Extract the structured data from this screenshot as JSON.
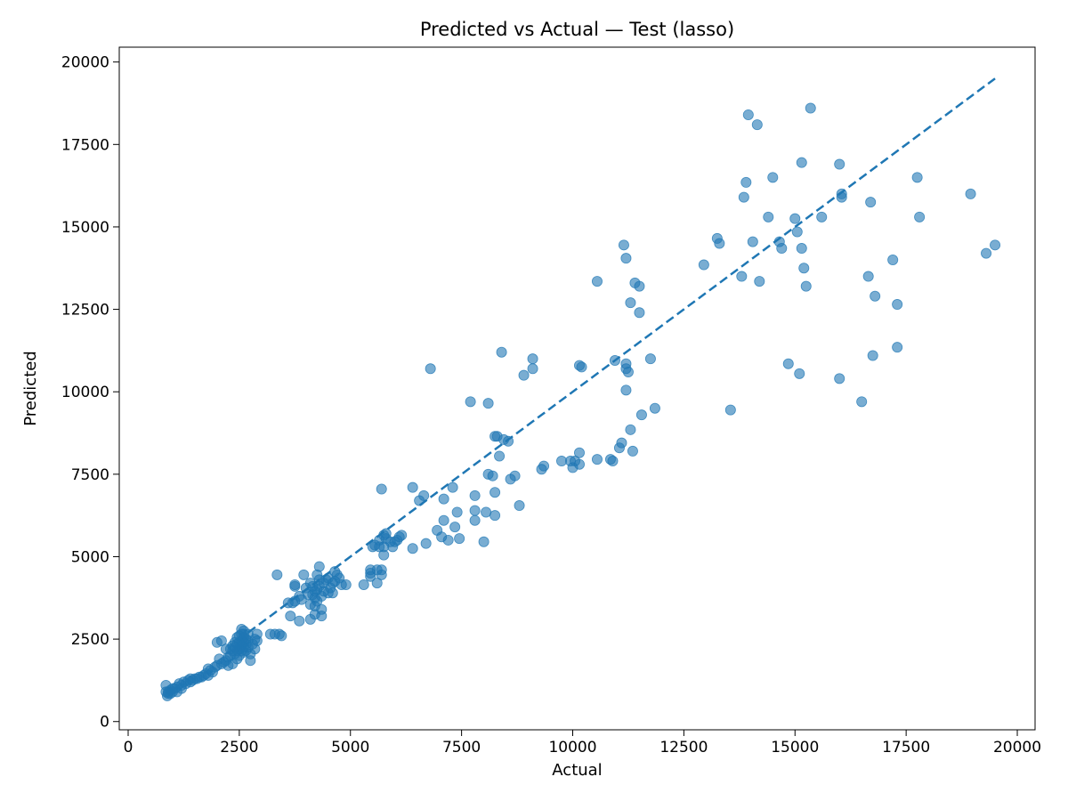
{
  "chart_data": {
    "type": "scatter",
    "title": "Predicted vs Actual — Test (lasso)",
    "xlabel": "Actual",
    "ylabel": "Predicted",
    "xlim": [
      -200,
      20400
    ],
    "ylim": [
      -250,
      20450
    ],
    "xticks": [
      0,
      2500,
      5000,
      7500,
      10000,
      12500,
      15000,
      17500,
      20000
    ],
    "yticks": [
      0,
      2500,
      5000,
      7500,
      10000,
      12500,
      15000,
      17500,
      20000
    ],
    "grid": false,
    "marker_color": "#1f77b4",
    "marker_alpha": 0.6,
    "reference_line": {
      "style": "dashed",
      "color": "#1f77b4",
      "x": [
        2700,
        19500
      ],
      "y": [
        2700,
        19500
      ]
    },
    "points": [
      [
        19500,
        14450
      ],
      [
        19300,
        14200
      ],
      [
        18950,
        16000
      ],
      [
        17750,
        16500
      ],
      [
        17800,
        15300
      ],
      [
        17300,
        12650
      ],
      [
        17300,
        11350
      ],
      [
        17200,
        14000
      ],
      [
        16800,
        12900
      ],
      [
        16750,
        11100
      ],
      [
        16700,
        15750
      ],
      [
        16650,
        13500
      ],
      [
        16500,
        9700
      ],
      [
        16050,
        16000
      ],
      [
        16050,
        15900
      ],
      [
        16000,
        16900
      ],
      [
        16000,
        10400
      ],
      [
        15600,
        15300
      ],
      [
        15350,
        18600
      ],
      [
        15250,
        13200
      ],
      [
        15200,
        13750
      ],
      [
        15150,
        16950
      ],
      [
        15150,
        14350
      ],
      [
        15100,
        10550
      ],
      [
        15050,
        14850
      ],
      [
        15000,
        15250
      ],
      [
        14850,
        10850
      ],
      [
        14700,
        14350
      ],
      [
        14650,
        14550
      ],
      [
        14500,
        16500
      ],
      [
        14400,
        15300
      ],
      [
        14200,
        13350
      ],
      [
        14150,
        18100
      ],
      [
        14050,
        14550
      ],
      [
        13950,
        18400
      ],
      [
        13900,
        16350
      ],
      [
        13850,
        15900
      ],
      [
        13800,
        13500
      ],
      [
        13550,
        9450
      ],
      [
        13300,
        14500
      ],
      [
        13250,
        14650
      ],
      [
        12950,
        13850
      ],
      [
        11850,
        9500
      ],
      [
        11750,
        11000
      ],
      [
        11550,
        9300
      ],
      [
        11500,
        13200
      ],
      [
        11500,
        12400
      ],
      [
        11400,
        13300
      ],
      [
        11350,
        8200
      ],
      [
        11300,
        12700
      ],
      [
        11300,
        8850
      ],
      [
        11250,
        10600
      ],
      [
        11200,
        10700
      ],
      [
        11200,
        14050
      ],
      [
        11200,
        10850
      ],
      [
        11200,
        10050
      ],
      [
        11150,
        14450
      ],
      [
        11100,
        8450
      ],
      [
        11050,
        8300
      ],
      [
        10950,
        10950
      ],
      [
        10900,
        7900
      ],
      [
        10850,
        7950
      ],
      [
        10550,
        13350
      ],
      [
        10550,
        7950
      ],
      [
        10200,
        10750
      ],
      [
        10150,
        10800
      ],
      [
        10150,
        8150
      ],
      [
        10150,
        7800
      ],
      [
        10050,
        7900
      ],
      [
        10000,
        7700
      ],
      [
        9950,
        7900
      ],
      [
        9750,
        7900
      ],
      [
        9350,
        7750
      ],
      [
        9300,
        7650
      ],
      [
        9100,
        11000
      ],
      [
        9100,
        10700
      ],
      [
        8900,
        10500
      ],
      [
        8800,
        6550
      ],
      [
        8700,
        7450
      ],
      [
        8600,
        7350
      ],
      [
        8550,
        8500
      ],
      [
        8450,
        8550
      ],
      [
        8400,
        11200
      ],
      [
        8350,
        8050
      ],
      [
        8300,
        8650
      ],
      [
        8250,
        8650
      ],
      [
        8250,
        6950
      ],
      [
        8250,
        6250
      ],
      [
        8200,
        7450
      ],
      [
        8100,
        7500
      ],
      [
        8100,
        9650
      ],
      [
        8050,
        6350
      ],
      [
        8000,
        5450
      ],
      [
        7800,
        6850
      ],
      [
        7800,
        6400
      ],
      [
        7800,
        6100
      ],
      [
        7700,
        9700
      ],
      [
        7450,
        5550
      ],
      [
        7400,
        6350
      ],
      [
        7350,
        5900
      ],
      [
        7300,
        7100
      ],
      [
        7200,
        5500
      ],
      [
        7100,
        6100
      ],
      [
        7100,
        6750
      ],
      [
        7050,
        5600
      ],
      [
        6950,
        5800
      ],
      [
        6800,
        10700
      ],
      [
        6700,
        5400
      ],
      [
        6650,
        6850
      ],
      [
        6550,
        6700
      ],
      [
        6400,
        7100
      ],
      [
        6400,
        5250
      ],
      [
        6150,
        5650
      ],
      [
        6100,
        5600
      ],
      [
        6050,
        5500
      ],
      [
        6000,
        5450
      ],
      [
        5950,
        5300
      ],
      [
        5900,
        5450
      ],
      [
        5800,
        5700
      ],
      [
        5800,
        5550
      ],
      [
        5750,
        5650
      ],
      [
        5750,
        5300
      ],
      [
        5750,
        5050
      ],
      [
        5700,
        7050
      ],
      [
        5700,
        4600
      ],
      [
        5700,
        4450
      ],
      [
        5650,
        5500
      ],
      [
        5650,
        5300
      ],
      [
        5600,
        4600
      ],
      [
        5600,
        4200
      ],
      [
        5550,
        5350
      ],
      [
        5500,
        5300
      ],
      [
        5450,
        4600
      ],
      [
        5450,
        4500
      ],
      [
        5450,
        4400
      ],
      [
        5300,
        4150
      ],
      [
        4900,
        4150
      ],
      [
        4800,
        4150
      ],
      [
        4750,
        4350
      ],
      [
        4700,
        4450
      ],
      [
        4650,
        4250
      ],
      [
        4650,
        4550
      ],
      [
        4600,
        4200
      ],
      [
        4600,
        3900
      ],
      [
        4550,
        4050
      ],
      [
        4500,
        4350
      ],
      [
        4500,
        3900
      ],
      [
        4450,
        4300
      ],
      [
        4400,
        3950
      ],
      [
        4400,
        4200
      ],
      [
        4350,
        3800
      ],
      [
        4350,
        3400
      ],
      [
        4350,
        3200
      ],
      [
        4300,
        4700
      ],
      [
        4300,
        4100
      ],
      [
        4300,
        4300
      ],
      [
        4250,
        3650
      ],
      [
        4250,
        4000
      ],
      [
        4250,
        4450
      ],
      [
        4200,
        3750
      ],
      [
        4200,
        3500
      ],
      [
        4200,
        3950
      ],
      [
        4200,
        3250
      ],
      [
        4150,
        3850
      ],
      [
        4150,
        4100
      ],
      [
        4100,
        4200
      ],
      [
        4100,
        3550
      ],
      [
        4100,
        3100
      ],
      [
        4050,
        3850
      ],
      [
        4000,
        4050
      ],
      [
        3950,
        4450
      ],
      [
        3900,
        3700
      ],
      [
        3850,
        3800
      ],
      [
        3850,
        3050
      ],
      [
        3750,
        4100
      ],
      [
        3750,
        4150
      ],
      [
        3750,
        3650
      ],
      [
        3700,
        3600
      ],
      [
        3650,
        3200
      ],
      [
        3600,
        3600
      ],
      [
        3450,
        2600
      ],
      [
        3400,
        2650
      ],
      [
        3350,
        4450
      ],
      [
        3300,
        2650
      ],
      [
        3200,
        2650
      ],
      [
        2900,
        2650
      ],
      [
        2900,
        2450
      ],
      [
        2850,
        2500
      ],
      [
        2850,
        2200
      ],
      [
        2800,
        2350
      ],
      [
        2750,
        2050
      ],
      [
        2750,
        1850
      ],
      [
        2700,
        2650
      ],
      [
        2700,
        2450
      ],
      [
        2700,
        2250
      ],
      [
        2650,
        2500
      ],
      [
        2650,
        2350
      ],
      [
        2650,
        2150
      ],
      [
        2600,
        2750
      ],
      [
        2600,
        2650
      ],
      [
        2600,
        2550
      ],
      [
        2600,
        2400
      ],
      [
        2600,
        2250
      ],
      [
        2600,
        2100
      ],
      [
        2550,
        2800
      ],
      [
        2550,
        2650
      ],
      [
        2550,
        2450
      ],
      [
        2550,
        2300
      ],
      [
        2550,
        2150
      ],
      [
        2500,
        2600
      ],
      [
        2500,
        2400
      ],
      [
        2500,
        2200
      ],
      [
        2500,
        2000
      ],
      [
        2450,
        2550
      ],
      [
        2450,
        2350
      ],
      [
        2450,
        2150
      ],
      [
        2450,
        1900
      ],
      [
        2400,
        2400
      ],
      [
        2400,
        2250
      ],
      [
        2400,
        2050
      ],
      [
        2350,
        2300
      ],
      [
        2350,
        2150
      ],
      [
        2350,
        1750
      ],
      [
        2300,
        2200
      ],
      [
        2300,
        2000
      ],
      [
        2250,
        1950
      ],
      [
        2250,
        1700
      ],
      [
        2200,
        2200
      ],
      [
        2200,
        1850
      ],
      [
        2150,
        1800
      ],
      [
        2100,
        2450
      ],
      [
        2100,
        1750
      ],
      [
        2050,
        1900
      ],
      [
        2000,
        1700
      ],
      [
        2000,
        2400
      ],
      [
        1950,
        1650
      ],
      [
        1900,
        1500
      ],
      [
        1850,
        1550
      ],
      [
        1800,
        1600
      ],
      [
        1800,
        1400
      ],
      [
        1750,
        1450
      ],
      [
        1700,
        1400
      ],
      [
        1650,
        1350
      ],
      [
        1600,
        1350
      ],
      [
        1550,
        1300
      ],
      [
        1500,
        1300
      ],
      [
        1450,
        1250
      ],
      [
        1400,
        1200
      ],
      [
        1400,
        1300
      ],
      [
        1350,
        1250
      ],
      [
        1300,
        1150
      ],
      [
        1250,
        1200
      ],
      [
        1200,
        1100
      ],
      [
        1200,
        1000
      ],
      [
        1150,
        1150
      ],
      [
        1100,
        1050
      ],
      [
        1100,
        900
      ],
      [
        1050,
        1000
      ],
      [
        1000,
        1000
      ],
      [
        1000,
        900
      ],
      [
        950,
        850
      ],
      [
        950,
        950
      ],
      [
        900,
        900
      ],
      [
        900,
        850
      ],
      [
        880,
        780
      ],
      [
        850,
        1100
      ],
      [
        850,
        900
      ]
    ]
  }
}
